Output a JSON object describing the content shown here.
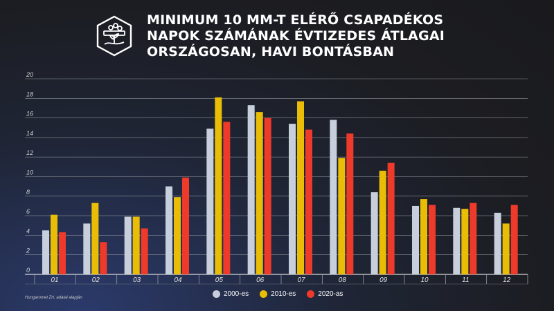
{
  "header": {
    "title_lines": [
      "MINIMUM 10 MM-T ELÉRŐ CSAPADÉKOS",
      "NAPOK SZÁMÁNAK ÉVTIZEDES ÁTLAGAI",
      "ORSZÁGOSAN, HAVI BONTÁSBAN"
    ],
    "logo_icon": "plant-in-hand-hexagon-icon"
  },
  "source": "Hungaromet Zrt. adatai alapján",
  "colors": {
    "s2000": "#c8cfdc",
    "s2010": "#e9bc06",
    "s2020": "#ee3a2a"
  },
  "chart_data": {
    "type": "bar",
    "categories": [
      "01",
      "02",
      "03",
      "04",
      "05",
      "06",
      "07",
      "08",
      "09",
      "10",
      "11",
      "12"
    ],
    "series": [
      {
        "name": "2000-es",
        "values": [
          4.5,
          5.2,
          5.9,
          9.0,
          14.9,
          17.3,
          15.4,
          15.8,
          8.4,
          7.0,
          6.8,
          6.3
        ]
      },
      {
        "name": "2010-es",
        "values": [
          6.1,
          7.3,
          5.9,
          7.9,
          18.1,
          16.6,
          17.7,
          11.9,
          10.6,
          7.7,
          6.7,
          5.2
        ]
      },
      {
        "name": "2020-as",
        "values": [
          4.3,
          3.3,
          4.7,
          9.9,
          15.6,
          16.0,
          14.8,
          14.4,
          11.4,
          7.1,
          7.3,
          7.1
        ]
      }
    ],
    "yticks": [
      0,
      2,
      4,
      6,
      8,
      10,
      12,
      14,
      16,
      18,
      20
    ],
    "ylim": [
      0,
      20
    ],
    "grid": true,
    "legend": "bottom-center"
  }
}
